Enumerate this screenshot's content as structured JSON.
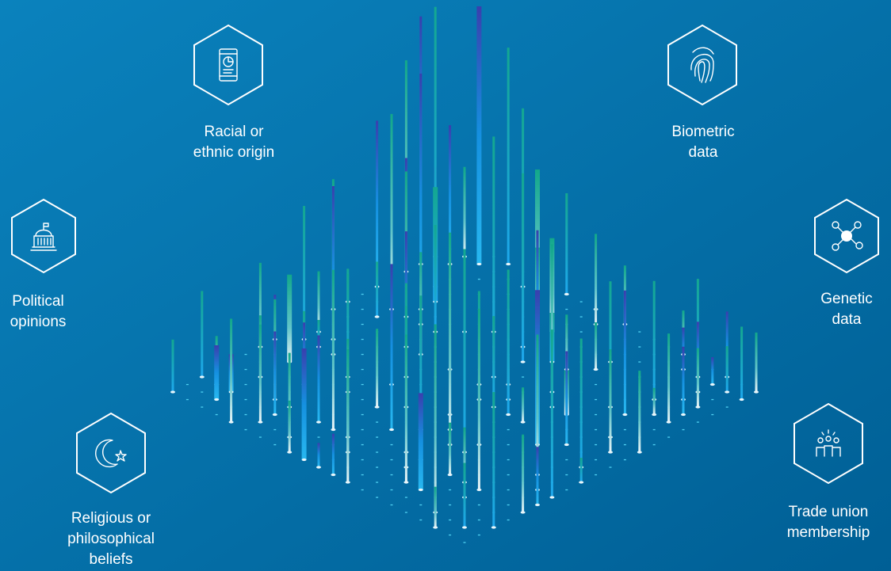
{
  "categories": [
    {
      "lines": [
        "Racial or",
        "ethnic origin"
      ]
    },
    {
      "lines": [
        "Biometric",
        "data"
      ]
    },
    {
      "lines": [
        "Political",
        "opinions"
      ]
    },
    {
      "lines": [
        "Genetic",
        "data"
      ]
    },
    {
      "lines": [
        "Religious or",
        "philosophical",
        "beliefs"
      ]
    },
    {
      "lines": [
        "Trade union",
        "membership"
      ]
    }
  ]
}
